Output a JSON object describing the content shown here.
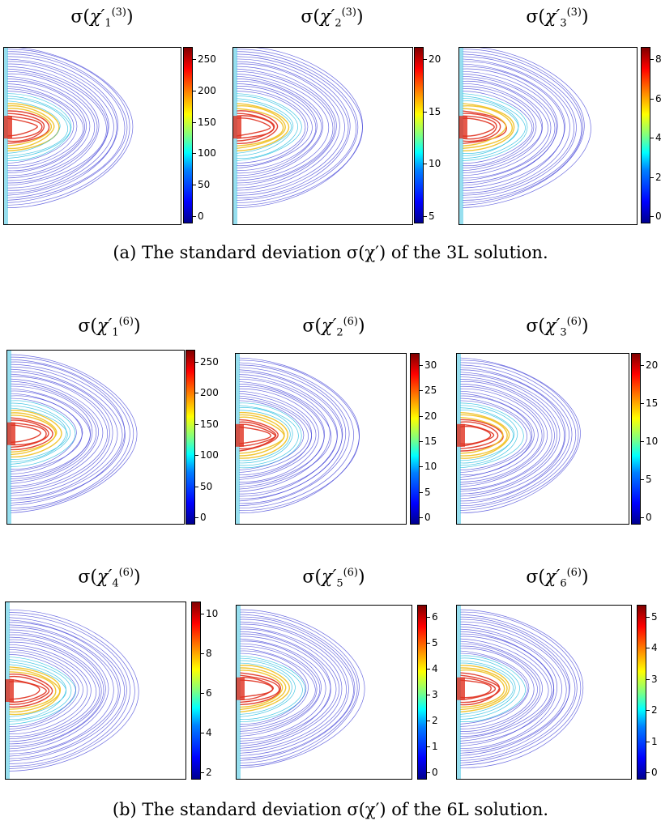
{
  "captions": {
    "a": "(a) The standard deviation σ(χ′) of the 3L solution.",
    "b": "(b) The standard deviation σ(χ′) of the 6L solution."
  },
  "panels": [
    {
      "id": "p1",
      "sigma": "σ(",
      "chi": "χ′",
      "sub": "1",
      "sup": "(3)",
      "close": ")",
      "ticks": [
        "250",
        "200",
        "150",
        "100",
        "50",
        "0"
      ]
    },
    {
      "id": "p2",
      "sigma": "σ(",
      "chi": "χ′",
      "sub": "2",
      "sup": "(3)",
      "close": ")",
      "ticks": [
        "20",
        "15",
        "10",
        "5"
      ]
    },
    {
      "id": "p3",
      "sigma": "σ(",
      "chi": "χ′",
      "sub": "3",
      "sup": "(3)",
      "close": ")",
      "ticks": [
        "8",
        "6",
        "4",
        "2",
        "0"
      ]
    },
    {
      "id": "p4",
      "sigma": "σ(",
      "chi": "χ′",
      "sub": "1",
      "sup": "(6)",
      "close": ")",
      "ticks": [
        "250",
        "200",
        "150",
        "100",
        "50",
        "0"
      ]
    },
    {
      "id": "p5",
      "sigma": "σ(",
      "chi": "χ′",
      "sub": "2",
      "sup": "(6)",
      "close": ")",
      "ticks": [
        "30",
        "25",
        "20",
        "15",
        "10",
        "5",
        "0"
      ]
    },
    {
      "id": "p6",
      "sigma": "σ(",
      "chi": "χ′",
      "sub": "3",
      "sup": "(6)",
      "close": ")",
      "ticks": [
        "20",
        "15",
        "10",
        "5",
        "0"
      ]
    },
    {
      "id": "p7",
      "sigma": "σ(",
      "chi": "χ′",
      "sub": "4",
      "sup": "(6)",
      "close": ")",
      "ticks": [
        "10",
        "8",
        "6",
        "4",
        "2"
      ]
    },
    {
      "id": "p8",
      "sigma": "σ(",
      "chi": "χ′",
      "sub": "5",
      "sup": "(6)",
      "close": ")",
      "ticks": [
        "6",
        "5",
        "4",
        "3",
        "2",
        "1",
        "0"
      ]
    },
    {
      "id": "p9",
      "sigma": "σ(",
      "chi": "χ′",
      "sub": "6",
      "sup": "(6)",
      "close": ")",
      "ticks": [
        "5",
        "4",
        "3",
        "2",
        "1",
        "0"
      ]
    }
  ],
  "colors": {
    "contour": "#3b3bd6",
    "hot": "#e0301e",
    "warm": "#f0c020",
    "cool": "#30c0e0"
  }
}
